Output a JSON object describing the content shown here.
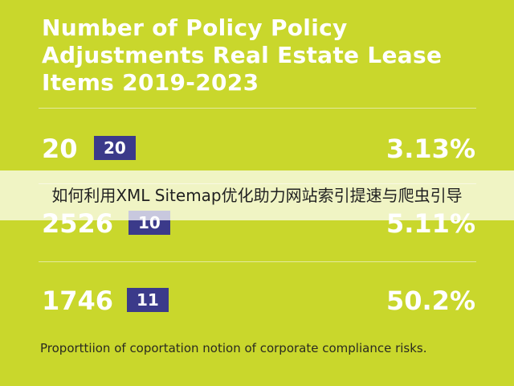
{
  "header": {
    "title_lines": [
      "Number of Policy Policy",
      "Adjustments Real Estate Lease",
      "Items 2019-2023"
    ]
  },
  "rows": [
    {
      "left": "20",
      "badge": "20",
      "right": "3.13%"
    },
    {
      "left": "2526",
      "badge": "10",
      "right": "5.11%"
    },
    {
      "left": "1746",
      "badge": "11",
      "right": "50.2%"
    }
  ],
  "footnote": "Proporttiion of coportation notion of corporate compliance risks.",
  "banner": "如何利用XML Sitemap优化助力网站索引提速与爬虫引导"
}
